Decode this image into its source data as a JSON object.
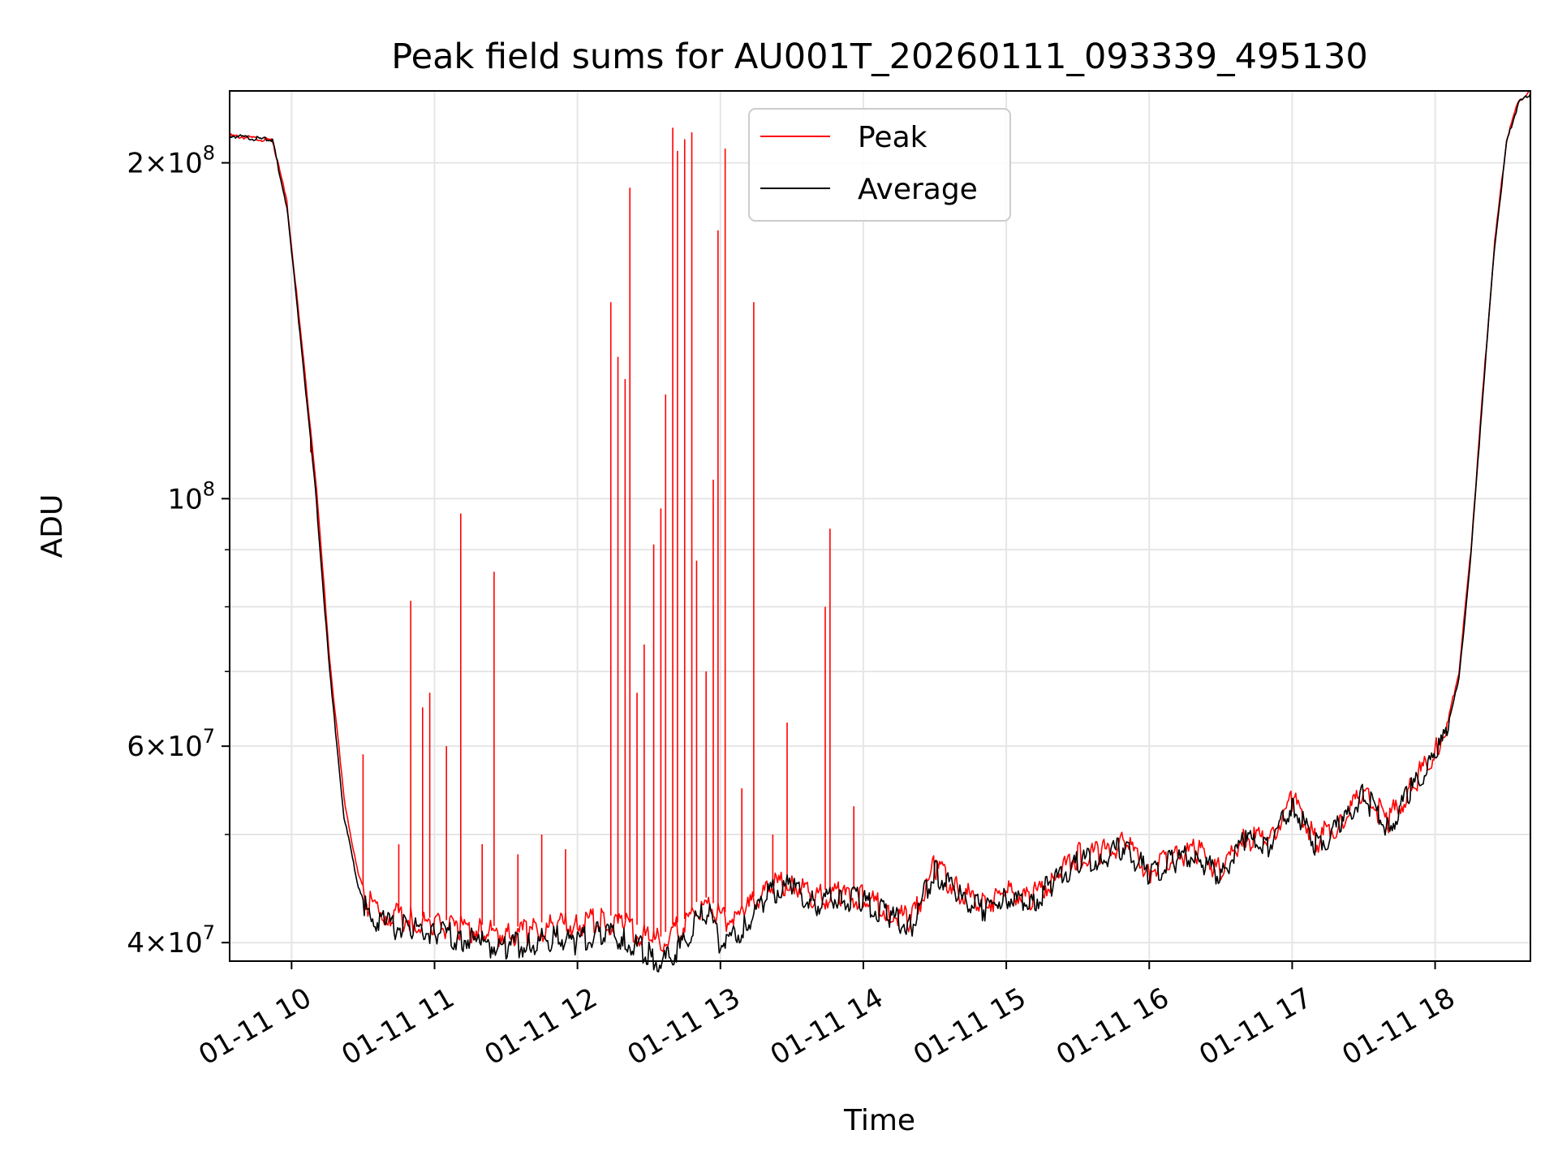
{
  "chart_data": {
    "type": "line",
    "title": "Peak field sums for AU001T_20260111_093339_495130",
    "xlabel": "Time",
    "ylabel": "ADU",
    "yscale": "log",
    "ylim": [
      38500000,
      232000000
    ],
    "xlim": [
      "2026-01-11 09:34",
      "2026-01-11 18:40"
    ],
    "grid": true,
    "legend_position": "top-center",
    "x_ticks": [
      {
        "value": "2026-01-11 10:00",
        "label": "01-11 10"
      },
      {
        "value": "2026-01-11 11:00",
        "label": "01-11 11"
      },
      {
        "value": "2026-01-11 12:00",
        "label": "01-11 12"
      },
      {
        "value": "2026-01-11 13:00",
        "label": "01-11 13"
      },
      {
        "value": "2026-01-11 14:00",
        "label": "01-11 14"
      },
      {
        "value": "2026-01-11 15:00",
        "label": "01-11 15"
      },
      {
        "value": "2026-01-11 16:00",
        "label": "01-11 16"
      },
      {
        "value": "2026-01-11 17:00",
        "label": "01-11 17"
      },
      {
        "value": "2026-01-11 18:00",
        "label": "01-11 18"
      }
    ],
    "y_major_ticks": [
      {
        "value": 40000000,
        "mantissa": "4",
        "exponent": "7"
      },
      {
        "value": 60000000,
        "mantissa": "6",
        "exponent": "7"
      },
      {
        "value": 100000000,
        "mantissa": "",
        "exponent": "8"
      },
      {
        "value": 200000000,
        "mantissa": "2",
        "exponent": "8"
      }
    ],
    "y_minor_ticks": [
      50000000,
      70000000,
      80000000,
      90000000
    ],
    "series": [
      {
        "name": "Peak",
        "color": "#ff0000",
        "x": [
          "09:34",
          "09:52",
          "09:58",
          "10:04",
          "10:10",
          "10:16",
          "10:22",
          "10:28",
          "10:32",
          "10:40",
          "10:50",
          "11:00",
          "11:10",
          "11:20",
          "11:30",
          "11:40",
          "11:50",
          "12:00",
          "12:10",
          "12:20",
          "12:30",
          "12:35",
          "12:40",
          "12:45",
          "12:50",
          "12:55",
          "13:00",
          "13:10",
          "13:20",
          "13:30",
          "13:40",
          "13:50",
          "14:00",
          "14:10",
          "14:20",
          "14:30",
          "14:40",
          "14:50",
          "15:00",
          "15:10",
          "15:20",
          "15:30",
          "15:40",
          "15:50",
          "16:00",
          "16:10",
          "16:20",
          "16:30",
          "16:40",
          "16:50",
          "17:00",
          "17:10",
          "17:20",
          "17:30",
          "17:40",
          "17:50",
          "18:00",
          "18:05",
          "18:10",
          "18:15",
          "18:20",
          "18:25",
          "18:30",
          "18:35",
          "18:40"
        ],
        "y": [
          212000000,
          210000000,
          185000000,
          140000000,
          105000000,
          72000000,
          54000000,
          46000000,
          44000000,
          43000000,
          42500000,
          42000000,
          41800000,
          41500000,
          41300000,
          41400000,
          42000000,
          42000000,
          42500000,
          42000000,
          41000000,
          40500000,
          41500000,
          42000000,
          43500000,
          44000000,
          42500000,
          43000000,
          45500000,
          46000000,
          44500000,
          44800000,
          44500000,
          43500000,
          42500000,
          47500000,
          45000000,
          44000000,
          45000000,
          44500000,
          46500000,
          48500000,
          49000000,
          50000000,
          47000000,
          48500000,
          49000000,
          47000000,
          50500000,
          50000000,
          54500000,
          50000000,
          52000000,
          55500000,
          52000000,
          56000000,
          60000000,
          63000000,
          70000000,
          90000000,
          125000000,
          170000000,
          210000000,
          228000000,
          232000000
        ],
        "spikes": [
          {
            "x": "10:08",
            "y": 110000000
          },
          {
            "x": "10:30",
            "y": 59000000
          },
          {
            "x": "10:45",
            "y": 49000000
          },
          {
            "x": "10:50",
            "y": 81000000
          },
          {
            "x": "10:55",
            "y": 65000000
          },
          {
            "x": "10:58",
            "y": 67000000
          },
          {
            "x": "11:05",
            "y": 60000000
          },
          {
            "x": "11:11",
            "y": 97000000
          },
          {
            "x": "11:20",
            "y": 49000000
          },
          {
            "x": "11:25",
            "y": 86000000
          },
          {
            "x": "11:35",
            "y": 48000000
          },
          {
            "x": "11:45",
            "y": 50000000
          },
          {
            "x": "11:55",
            "y": 48500000
          },
          {
            "x": "12:14",
            "y": 150000000
          },
          {
            "x": "12:17",
            "y": 134000000
          },
          {
            "x": "12:20",
            "y": 128000000
          },
          {
            "x": "12:22",
            "y": 190000000
          },
          {
            "x": "12:25",
            "y": 67000000
          },
          {
            "x": "12:28",
            "y": 74000000
          },
          {
            "x": "12:32",
            "y": 91000000
          },
          {
            "x": "12:35",
            "y": 98000000
          },
          {
            "x": "12:37",
            "y": 124000000
          },
          {
            "x": "12:40",
            "y": 215000000
          },
          {
            "x": "12:42",
            "y": 205000000
          },
          {
            "x": "12:45",
            "y": 210000000
          },
          {
            "x": "12:48",
            "y": 213000000
          },
          {
            "x": "12:50",
            "y": 88000000
          },
          {
            "x": "12:54",
            "y": 70000000
          },
          {
            "x": "12:57",
            "y": 104000000
          },
          {
            "x": "12:59",
            "y": 174000000
          },
          {
            "x": "13:02",
            "y": 206000000
          },
          {
            "x": "13:09",
            "y": 55000000
          },
          {
            "x": "13:14",
            "y": 150000000
          },
          {
            "x": "13:22",
            "y": 50000000
          },
          {
            "x": "13:28",
            "y": 63000000
          },
          {
            "x": "13:44",
            "y": 80000000
          },
          {
            "x": "13:46",
            "y": 94000000
          },
          {
            "x": "13:56",
            "y": 53000000
          }
        ]
      },
      {
        "name": "Average",
        "color": "#000000",
        "x": [
          "09:34",
          "09:52",
          "09:58",
          "10:04",
          "10:10",
          "10:16",
          "10:22",
          "10:28",
          "10:32",
          "10:40",
          "10:50",
          "11:00",
          "11:10",
          "11:20",
          "11:30",
          "11:40",
          "11:50",
          "12:00",
          "12:10",
          "12:20",
          "12:30",
          "12:35",
          "12:40",
          "12:45",
          "12:50",
          "12:55",
          "13:00",
          "13:10",
          "13:20",
          "13:30",
          "13:40",
          "13:50",
          "14:00",
          "14:10",
          "14:20",
          "14:30",
          "14:40",
          "14:50",
          "15:00",
          "15:10",
          "15:20",
          "15:30",
          "15:40",
          "15:50",
          "16:00",
          "16:10",
          "16:20",
          "16:30",
          "16:40",
          "16:50",
          "17:00",
          "17:10",
          "17:20",
          "17:30",
          "17:40",
          "17:50",
          "18:00",
          "18:05",
          "18:10",
          "18:15",
          "18:20",
          "18:25",
          "18:30",
          "18:35",
          "18:40"
        ],
        "y": [
          212000000,
          210000000,
          183000000,
          138000000,
          102000000,
          70000000,
          52000000,
          45000000,
          43000000,
          42000000,
          41800000,
          41500000,
          41000000,
          40500000,
          40200000,
          40500000,
          41000000,
          40500000,
          41500000,
          41000000,
          39500000,
          38800000,
          39500000,
          40500000,
          42500000,
          43000000,
          40500000,
          41800000,
          45000000,
          45500000,
          44000000,
          44500000,
          44200000,
          43000000,
          42000000,
          47000000,
          44500000,
          43500000,
          44500000,
          44000000,
          46000000,
          48000000,
          48500000,
          49500000,
          46500000,
          48000000,
          48500000,
          46500000,
          50000000,
          49500000,
          54000000,
          49500000,
          51500000,
          55000000,
          51500000,
          55500000,
          59500000,
          62500000,
          69000000,
          89000000,
          124000000,
          169000000,
          209000000,
          227000000,
          231000000
        ]
      }
    ]
  }
}
